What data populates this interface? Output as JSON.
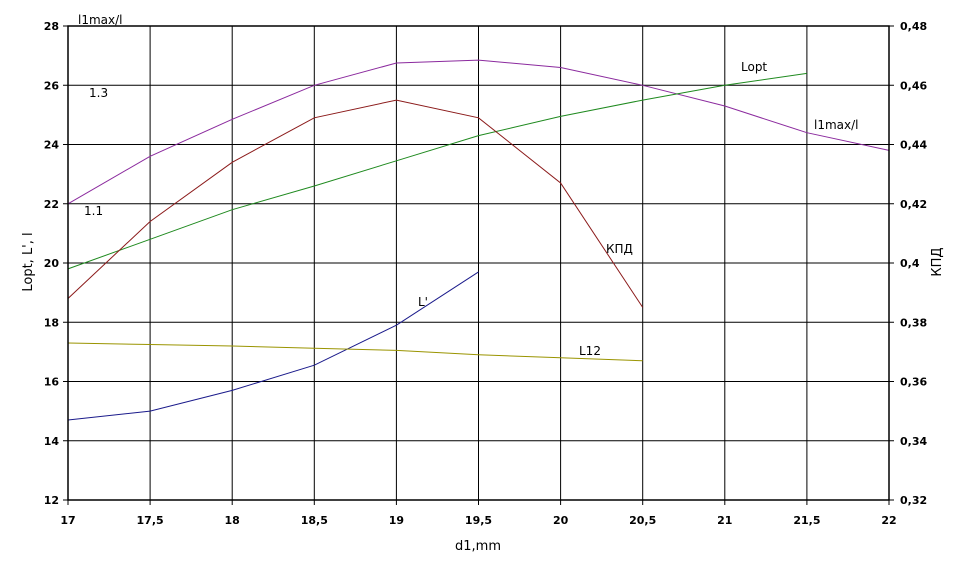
{
  "chart_data": {
    "type": "line",
    "xlabel": "d1,mm",
    "ylabel_left": "Lopt, L', l",
    "ylabel_right": "КПД",
    "x_ticks": [
      "17",
      "17,5",
      "18",
      "18,5",
      "19",
      "19,5",
      "20",
      "20,5",
      "21",
      "21,5",
      "22"
    ],
    "y_left_ticks": [
      "12",
      "14",
      "16",
      "18",
      "20",
      "22",
      "24",
      "26",
      "28"
    ],
    "y_right_ticks": [
      "0,32",
      "0,34",
      "0,36",
      "0,38",
      "0,4",
      "0,42",
      "0,44",
      "0,46",
      "0,48"
    ],
    "xlim": [
      17,
      22
    ],
    "ylim_left": [
      12,
      28
    ],
    "ylim_right": [
      0.32,
      0.48
    ],
    "grid": true,
    "left_axis_markers": [
      "1.3",
      "1.1"
    ],
    "top_left_label": "l1max/l",
    "series": [
      {
        "name": "l1max/l",
        "axis": "left",
        "color": "#8b2a9e",
        "x": [
          17,
          17.5,
          18,
          18.5,
          19,
          19.5,
          20,
          20.5,
          21,
          21.5,
          22
        ],
        "y": [
          22.0,
          23.6,
          24.85,
          26.0,
          26.75,
          26.85,
          26.6,
          26.0,
          25.3,
          24.4,
          23.8
        ]
      },
      {
        "name": "Lopt",
        "axis": "left",
        "color": "#1f8a1f",
        "x": [
          17,
          17.5,
          18,
          18.5,
          19,
          19.5,
          20,
          20.5,
          21,
          21.5
        ],
        "y": [
          19.8,
          20.8,
          21.8,
          22.6,
          23.45,
          24.3,
          24.95,
          25.5,
          26.0,
          26.4
        ]
      },
      {
        "name": "КПД",
        "axis": "right",
        "color": "#8b1a1a",
        "x": [
          17,
          17.5,
          18,
          18.5,
          19,
          19.5,
          20,
          20.5
        ],
        "y": [
          0.388,
          0.414,
          0.434,
          0.449,
          0.455,
          0.449,
          0.427,
          0.385
        ]
      },
      {
        "name": "L'",
        "axis": "left",
        "color": "#1a1a8b",
        "x": [
          17,
          17.5,
          18,
          18.5,
          19,
          19.5
        ],
        "y": [
          14.7,
          15.0,
          15.7,
          16.55,
          17.9,
          19.7
        ]
      },
      {
        "name": "L12",
        "axis": "left",
        "color": "#9a9400",
        "x": [
          17,
          17.5,
          18,
          18.5,
          19,
          19.5,
          20,
          20.5
        ],
        "y": [
          17.3,
          17.25,
          17.2,
          17.12,
          17.05,
          16.9,
          16.8,
          16.7
        ]
      }
    ]
  }
}
